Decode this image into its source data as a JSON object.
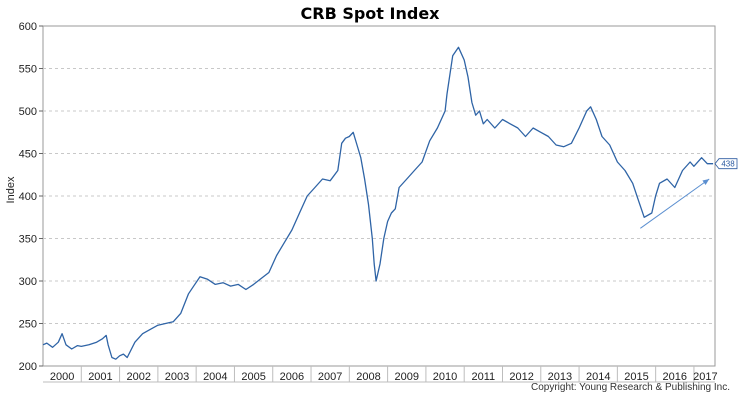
{
  "chart_data": {
    "type": "line",
    "title": "CRB Spot Index",
    "ylabel": "Index",
    "xlabel": "",
    "ylim": [
      200,
      600
    ],
    "xlim": [
      2000,
      2017.55
    ],
    "y_ticks": [
      200,
      250,
      300,
      350,
      400,
      450,
      500,
      550,
      600
    ],
    "x_tick_labels": [
      "2000",
      "2001",
      "2002",
      "2003",
      "2004",
      "2005",
      "2006",
      "2007",
      "2008",
      "2009",
      "2010",
      "2011",
      "2012",
      "2013",
      "2014",
      "2015",
      "2016",
      "2017"
    ],
    "grid": true,
    "line_color": "#2f64a6",
    "series": [
      {
        "x": [
          2000.0,
          2000.1,
          2000.25,
          2000.4,
          2000.5,
          2000.6,
          2000.75,
          2000.9,
          2001.0,
          2001.2,
          2001.4,
          2001.55,
          2001.65,
          2001.7,
          2001.8,
          2001.9,
          2002.0,
          2002.1,
          2002.2,
          2002.4,
          2002.6,
          2002.8,
          2003.0,
          2003.2,
          2003.4,
          2003.6,
          2003.8,
          2003.95,
          2004.1,
          2004.3,
          2004.5,
          2004.7,
          2004.9,
          2005.1,
          2005.3,
          2005.5,
          2005.7,
          2005.9,
          2006.1,
          2006.3,
          2006.5,
          2006.7,
          2006.9,
          2007.1,
          2007.3,
          2007.5,
          2007.7,
          2007.8,
          2007.9,
          2008.0,
          2008.1,
          2008.2,
          2008.3,
          2008.4,
          2008.5,
          2008.6,
          2008.65,
          2008.7,
          2008.8,
          2008.9,
          2009.0,
          2009.1,
          2009.2,
          2009.3,
          2009.5,
          2009.7,
          2009.9,
          2010.1,
          2010.3,
          2010.5,
          2010.55,
          2010.7,
          2010.85,
          2011.0,
          2011.1,
          2011.2,
          2011.3,
          2011.4,
          2011.5,
          2011.6,
          2011.8,
          2012.0,
          2012.2,
          2012.4,
          2012.6,
          2012.8,
          2013.0,
          2013.2,
          2013.4,
          2013.6,
          2013.8,
          2014.0,
          2014.2,
          2014.3,
          2014.45,
          2014.6,
          2014.8,
          2015.0,
          2015.2,
          2015.4,
          2015.55,
          2015.7,
          2015.9,
          2016.0,
          2016.1,
          2016.3,
          2016.5,
          2016.7,
          2016.9,
          2017.0,
          2017.2,
          2017.35,
          2017.5
        ],
        "y": [
          225,
          227,
          222,
          228,
          238,
          225,
          220,
          224,
          223,
          225,
          228,
          232,
          236,
          225,
          210,
          208,
          212,
          214,
          210,
          228,
          238,
          243,
          248,
          250,
          252,
          262,
          285,
          295,
          305,
          302,
          296,
          298,
          294,
          296,
          290,
          296,
          303,
          310,
          330,
          345,
          360,
          380,
          400,
          410,
          420,
          418,
          430,
          462,
          468,
          470,
          475,
          460,
          445,
          420,
          390,
          350,
          320,
          300,
          320,
          350,
          370,
          380,
          385,
          410,
          420,
          430,
          440,
          465,
          480,
          500,
          520,
          565,
          575,
          560,
          540,
          510,
          495,
          500,
          485,
          490,
          480,
          490,
          485,
          480,
          470,
          480,
          475,
          470,
          460,
          458,
          462,
          480,
          500,
          505,
          490,
          470,
          460,
          440,
          430,
          415,
          395,
          375,
          380,
          400,
          415,
          420,
          410,
          430,
          440,
          435,
          445,
          438,
          438
        ]
      }
    ],
    "end_value_label": "438",
    "copyright": "Copyright: Young Research & Publishing Inc."
  }
}
